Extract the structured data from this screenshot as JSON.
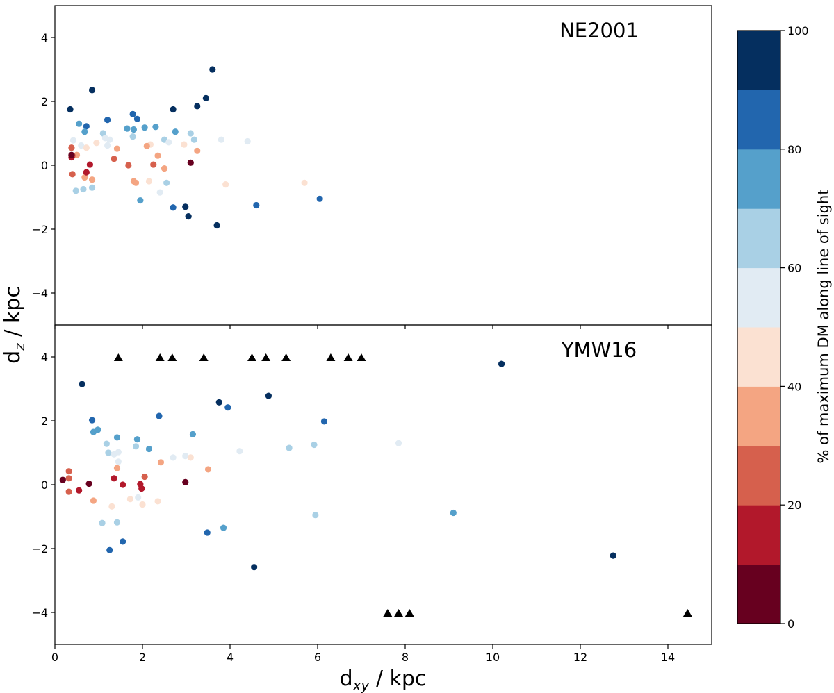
{
  "chart_data": {
    "type": "scatter",
    "xlabel_main": "d",
    "xlabel_sub": "xy",
    "xlabel_unit": " / kpc",
    "ylabel_main": "d",
    "ylabel_sub": "z",
    "ylabel_unit": " / kpc",
    "xlim": [
      0,
      15
    ],
    "ylim": [
      -5,
      5
    ],
    "x_ticks": [
      0,
      2,
      4,
      6,
      8,
      10,
      12,
      14
    ],
    "y_ticks": [
      -4,
      -2,
      0,
      2,
      4
    ],
    "colorbar": {
      "label": "% of maximum DM along line of sight",
      "range": [
        0,
        100
      ],
      "ticks": [
        0,
        20,
        40,
        60,
        80,
        100
      ],
      "colors": [
        "#67001f",
        "#b2182b",
        "#d6604d",
        "#f4a582",
        "#fbe1d2",
        "#e1ebf3",
        "#a9d0e5",
        "#55a0cb",
        "#2266ae",
        "#052f5f"
      ]
    },
    "panels": [
      {
        "title": "NE2001",
        "points": [
          {
            "x": 0.35,
            "y": 1.75,
            "c": 95
          },
          {
            "x": 0.85,
            "y": 2.35,
            "c": 95
          },
          {
            "x": 3.6,
            "y": 3.0,
            "c": 95
          },
          {
            "x": 3.45,
            "y": 2.1,
            "c": 95
          },
          {
            "x": 3.25,
            "y": 1.85,
            "c": 95
          },
          {
            "x": 2.7,
            "y": 1.75,
            "c": 95
          },
          {
            "x": 0.72,
            "y": 1.22,
            "c": 85
          },
          {
            "x": 1.2,
            "y": 1.42,
            "c": 85
          },
          {
            "x": 1.78,
            "y": 1.6,
            "c": 85
          },
          {
            "x": 1.88,
            "y": 1.45,
            "c": 85
          },
          {
            "x": 0.55,
            "y": 1.3,
            "c": 75
          },
          {
            "x": 0.68,
            "y": 1.05,
            "c": 75
          },
          {
            "x": 1.65,
            "y": 1.15,
            "c": 75
          },
          {
            "x": 1.8,
            "y": 1.12,
            "c": 75
          },
          {
            "x": 2.05,
            "y": 1.18,
            "c": 75
          },
          {
            "x": 2.3,
            "y": 1.2,
            "c": 75
          },
          {
            "x": 2.75,
            "y": 1.05,
            "c": 75
          },
          {
            "x": 1.1,
            "y": 1.0,
            "c": 65
          },
          {
            "x": 1.78,
            "y": 0.9,
            "c": 65
          },
          {
            "x": 2.5,
            "y": 0.8,
            "c": 65
          },
          {
            "x": 3.1,
            "y": 1.0,
            "c": 65
          },
          {
            "x": 3.18,
            "y": 0.8,
            "c": 65
          },
          {
            "x": 0.42,
            "y": 0.78,
            "c": 55
          },
          {
            "x": 0.6,
            "y": 0.62,
            "c": 55
          },
          {
            "x": 1.15,
            "y": 0.85,
            "c": 55
          },
          {
            "x": 1.25,
            "y": 0.8,
            "c": 55
          },
          {
            "x": 1.2,
            "y": 0.62,
            "c": 55
          },
          {
            "x": 2.6,
            "y": 0.72,
            "c": 55
          },
          {
            "x": 3.8,
            "y": 0.8,
            "c": 55
          },
          {
            "x": 4.4,
            "y": 0.75,
            "c": 55
          },
          {
            "x": 0.72,
            "y": 0.55,
            "c": 45
          },
          {
            "x": 0.95,
            "y": 0.7,
            "c": 45
          },
          {
            "x": 2.18,
            "y": 0.65,
            "c": 45
          },
          {
            "x": 2.95,
            "y": 0.65,
            "c": 45
          },
          {
            "x": 3.9,
            "y": -0.6,
            "c": 45
          },
          {
            "x": 5.7,
            "y": -0.55,
            "c": 45
          },
          {
            "x": 0.5,
            "y": 0.32,
            "c": 35
          },
          {
            "x": 1.42,
            "y": 0.52,
            "c": 35
          },
          {
            "x": 2.1,
            "y": 0.6,
            "c": 35
          },
          {
            "x": 2.35,
            "y": 0.3,
            "c": 35
          },
          {
            "x": 3.25,
            "y": 0.45,
            "c": 35
          },
          {
            "x": 0.68,
            "y": -0.38,
            "c": 35
          },
          {
            "x": 0.85,
            "y": -0.45,
            "c": 35
          },
          {
            "x": 1.8,
            "y": -0.5,
            "c": 35
          },
          {
            "x": 1.85,
            "y": -0.55,
            "c": 35
          },
          {
            "x": 2.5,
            "y": -0.1,
            "c": 35
          },
          {
            "x": 0.38,
            "y": 0.55,
            "c": 25
          },
          {
            "x": 0.4,
            "y": 0.3,
            "c": 25
          },
          {
            "x": 0.4,
            "y": -0.28,
            "c": 25
          },
          {
            "x": 1.35,
            "y": 0.2,
            "c": 25
          },
          {
            "x": 1.68,
            "y": 0.0,
            "c": 25
          },
          {
            "x": 2.25,
            "y": 0.02,
            "c": 25
          },
          {
            "x": 0.38,
            "y": 0.25,
            "c": 15
          },
          {
            "x": 0.72,
            "y": -0.22,
            "c": 15
          },
          {
            "x": 0.8,
            "y": 0.02,
            "c": 15
          },
          {
            "x": 0.38,
            "y": 0.32,
            "c": 5
          },
          {
            "x": 3.1,
            "y": 0.08,
            "c": 5
          },
          {
            "x": 0.48,
            "y": -0.8,
            "c": 65
          },
          {
            "x": 0.65,
            "y": -0.75,
            "c": 65
          },
          {
            "x": 0.85,
            "y": -0.7,
            "c": 65
          },
          {
            "x": 2.55,
            "y": -0.55,
            "c": 65
          },
          {
            "x": 2.4,
            "y": -0.85,
            "c": 55
          },
          {
            "x": 2.15,
            "y": -0.5,
            "c": 45
          },
          {
            "x": 1.95,
            "y": -1.1,
            "c": 75
          },
          {
            "x": 4.6,
            "y": -1.25,
            "c": 85
          },
          {
            "x": 6.05,
            "y": -1.05,
            "c": 85
          },
          {
            "x": 2.7,
            "y": -1.32,
            "c": 85
          },
          {
            "x": 2.98,
            "y": -1.3,
            "c": 95
          },
          {
            "x": 3.05,
            "y": -1.6,
            "c": 95
          },
          {
            "x": 3.7,
            "y": -1.88,
            "c": 95
          }
        ],
        "triangles": []
      },
      {
        "title": "YMW16",
        "points": [
          {
            "x": 0.62,
            "y": 3.15,
            "c": 95
          },
          {
            "x": 10.2,
            "y": 3.78,
            "c": 95
          },
          {
            "x": 3.75,
            "y": 2.58,
            "c": 95
          },
          {
            "x": 3.95,
            "y": 2.42,
            "c": 85
          },
          {
            "x": 4.88,
            "y": 2.78,
            "c": 95
          },
          {
            "x": 2.38,
            "y": 2.15,
            "c": 85
          },
          {
            "x": 6.15,
            "y": 1.98,
            "c": 85
          },
          {
            "x": 0.85,
            "y": 2.02,
            "c": 85
          },
          {
            "x": 0.88,
            "y": 1.65,
            "c": 75
          },
          {
            "x": 0.98,
            "y": 1.72,
            "c": 75
          },
          {
            "x": 1.42,
            "y": 1.48,
            "c": 75
          },
          {
            "x": 1.88,
            "y": 1.42,
            "c": 75
          },
          {
            "x": 3.15,
            "y": 1.58,
            "c": 75
          },
          {
            "x": 2.15,
            "y": 1.12,
            "c": 75
          },
          {
            "x": 1.18,
            "y": 1.28,
            "c": 65
          },
          {
            "x": 1.22,
            "y": 1.0,
            "c": 65
          },
          {
            "x": 1.85,
            "y": 1.2,
            "c": 65
          },
          {
            "x": 5.35,
            "y": 1.15,
            "c": 65
          },
          {
            "x": 5.92,
            "y": 1.25,
            "c": 65
          },
          {
            "x": 1.35,
            "y": 0.95,
            "c": 55
          },
          {
            "x": 1.45,
            "y": 1.02,
            "c": 55
          },
          {
            "x": 1.45,
            "y": 0.72,
            "c": 55
          },
          {
            "x": 2.7,
            "y": 0.85,
            "c": 55
          },
          {
            "x": 2.98,
            "y": 0.9,
            "c": 55
          },
          {
            "x": 4.22,
            "y": 1.05,
            "c": 55
          },
          {
            "x": 7.85,
            "y": 1.3,
            "c": 55
          },
          {
            "x": 3.1,
            "y": 0.85,
            "c": 45
          },
          {
            "x": 1.42,
            "y": 0.52,
            "c": 35
          },
          {
            "x": 2.42,
            "y": 0.7,
            "c": 35
          },
          {
            "x": 3.5,
            "y": 0.48,
            "c": 35
          },
          {
            "x": 0.32,
            "y": 0.42,
            "c": 25
          },
          {
            "x": 0.32,
            "y": 0.2,
            "c": 25
          },
          {
            "x": 0.32,
            "y": -0.22,
            "c": 25
          },
          {
            "x": 2.05,
            "y": 0.25,
            "c": 25
          },
          {
            "x": 1.35,
            "y": 0.2,
            "c": 15
          },
          {
            "x": 0.55,
            "y": -0.18,
            "c": 15
          },
          {
            "x": 1.55,
            "y": 0.0,
            "c": 15
          },
          {
            "x": 1.95,
            "y": 0.02,
            "c": 15
          },
          {
            "x": 1.98,
            "y": -0.12,
            "c": 15
          },
          {
            "x": 0.18,
            "y": 0.15,
            "c": 5
          },
          {
            "x": 0.78,
            "y": 0.03,
            "c": 5
          },
          {
            "x": 2.98,
            "y": 0.08,
            "c": 5
          },
          {
            "x": 0.88,
            "y": -0.5,
            "c": 35
          },
          {
            "x": 1.3,
            "y": -0.68,
            "c": 45
          },
          {
            "x": 1.72,
            "y": -0.45,
            "c": 45
          },
          {
            "x": 2.0,
            "y": -0.62,
            "c": 45
          },
          {
            "x": 2.35,
            "y": -0.52,
            "c": 45
          },
          {
            "x": 1.9,
            "y": -0.4,
            "c": 55
          },
          {
            "x": 1.08,
            "y": -1.2,
            "c": 65
          },
          {
            "x": 1.42,
            "y": -1.18,
            "c": 65
          },
          {
            "x": 5.95,
            "y": -0.95,
            "c": 65
          },
          {
            "x": 9.1,
            "y": -0.88,
            "c": 75
          },
          {
            "x": 3.85,
            "y": -1.35,
            "c": 75
          },
          {
            "x": 3.48,
            "y": -1.5,
            "c": 85
          },
          {
            "x": 1.55,
            "y": -1.78,
            "c": 85
          },
          {
            "x": 1.25,
            "y": -2.05,
            "c": 85
          },
          {
            "x": 4.55,
            "y": -2.58,
            "c": 95
          },
          {
            "x": 12.75,
            "y": -2.22,
            "c": 95
          }
        ],
        "triangles": [
          {
            "x": 1.45,
            "y": 4
          },
          {
            "x": 2.4,
            "y": 4
          },
          {
            "x": 2.68,
            "y": 4
          },
          {
            "x": 3.4,
            "y": 4
          },
          {
            "x": 4.5,
            "y": 4
          },
          {
            "x": 4.82,
            "y": 4
          },
          {
            "x": 5.28,
            "y": 4
          },
          {
            "x": 6.3,
            "y": 4
          },
          {
            "x": 6.7,
            "y": 4
          },
          {
            "x": 7.0,
            "y": 4
          },
          {
            "x": 7.6,
            "y": -4
          },
          {
            "x": 7.85,
            "y": -4
          },
          {
            "x": 8.1,
            "y": -4
          },
          {
            "x": 14.45,
            "y": -4
          }
        ]
      }
    ]
  }
}
